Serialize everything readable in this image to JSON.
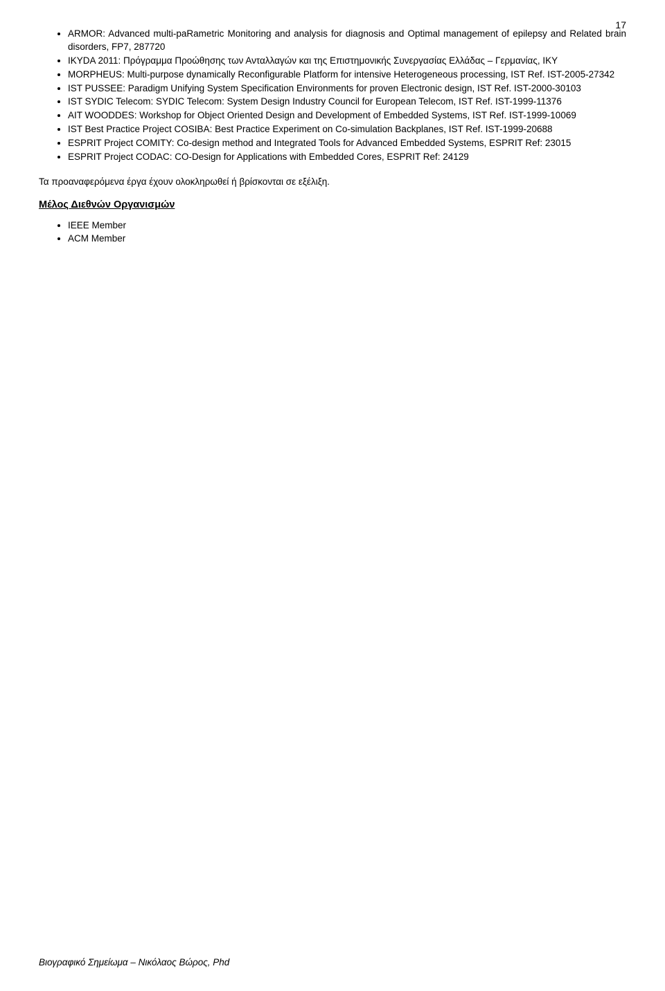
{
  "page_number": "17",
  "projects": [
    "ARMOR: Advanced multi-paRametric Monitoring and analysis for diagnosis and Optimal management of epilepsy and Related brain disorders, FP7, 287720",
    "IKYDA 2011: Πρόγραμμα Προώθησης των Ανταλλαγών και της Επιστημονικής Συνεργασίας Ελλάδας – Γερμανίας, ΙΚΥ",
    "MORPHEUS: Multi-purpose dynamically Reconfigurable Platform for intensive Heterogeneous processing, IST Ref. IST-2005-27342",
    "IST PUSSEE: Paradigm Unifying System Specification Environments for proven Electronic design, IST Ref. IST-2000-30103",
    "IST SYDIC Telecom: SYDIC Telecom: System Design Industry Council for European Telecom, IST Ref. IST-1999-11376",
    "AIT WOODDES: Workshop for Object Oriented Design and Development of Embedded Systems, IST Ref. IST-1999-10069",
    "IST Best Practice Project COSIBA: Best Practice Experiment on Co-simulation Backplanes, IST Ref. IST-1999-20688",
    "ESPRIT Project COMITY: Co-design method and Integrated Tools for Advanced Embedded Systems, ESPRIT Ref: 23015",
    "ESPRIT Project CODAC: CO-Design for Applications with Embedded Cores, ESPRIT Ref: 24129"
  ],
  "closing_text": "Τα προαναφερόμενα έργα έχουν ολοκληρωθεί ή βρίσκονται σε εξέλιξη.",
  "section_heading": "Μέλος Διεθνών Οργανισμών",
  "memberships": [
    "IEEE Member",
    "ACM Member"
  ],
  "footer": "Βιογραφικό Σημείωμα – Νικόλαος Βώρος, Phd"
}
